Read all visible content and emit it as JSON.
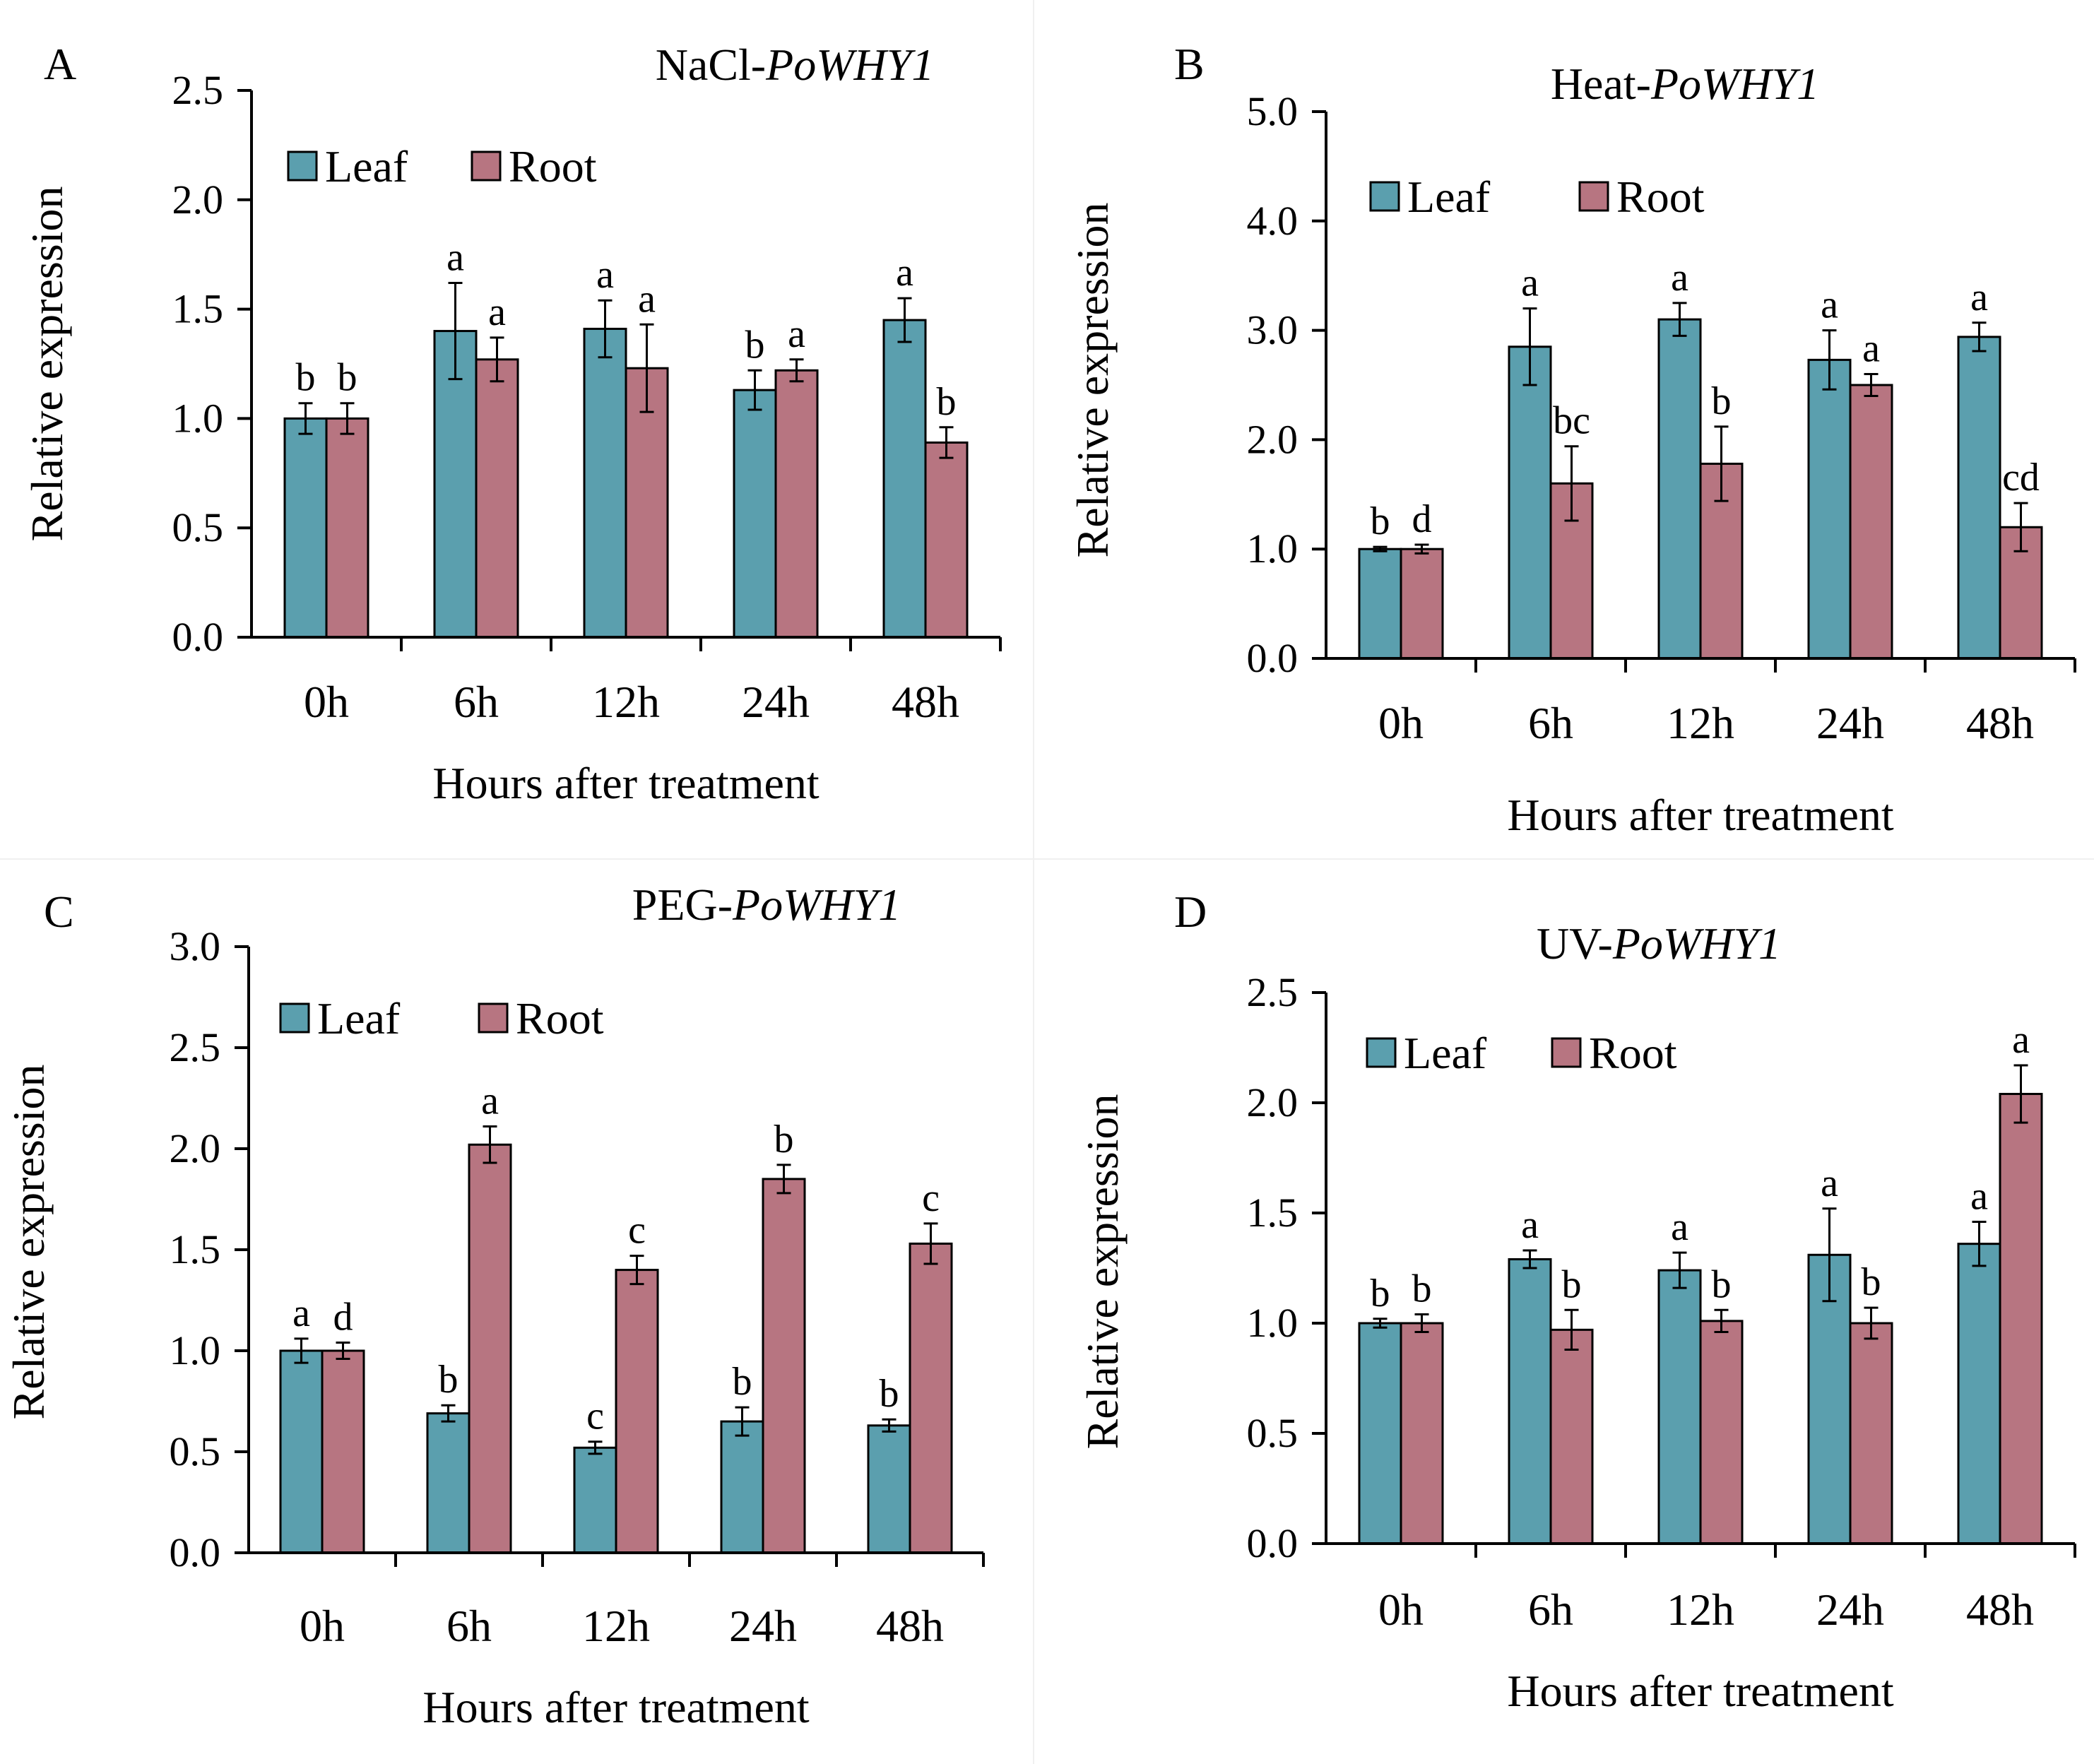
{
  "chart_data": [
    {
      "type": "bar",
      "panel_letter": "A",
      "title_prefix": "NaCl-",
      "title_gene": "PoWHY1",
      "categories": [
        "0h",
        "6h",
        "12h",
        "24h",
        "48h"
      ],
      "xlabel": "Hours after treatment",
      "ylabel": "Relative expression",
      "ylim": [
        0,
        2.5
      ],
      "yticks": [
        "0.0",
        "0.5",
        "1.0",
        "1.5",
        "2.0",
        "2.5"
      ],
      "series": [
        {
          "name": "Leaf",
          "color": "#5B9FAE",
          "values": [
            1.0,
            1.4,
            1.41,
            1.13,
            1.45
          ],
          "errors": [
            0.07,
            0.22,
            0.13,
            0.09,
            0.1
          ],
          "labels": [
            "b",
            "a",
            "a",
            "b",
            "a"
          ]
        },
        {
          "name": "Root",
          "color": "#B77581",
          "values": [
            1.0,
            1.27,
            1.23,
            1.22,
            0.89
          ],
          "errors": [
            0.07,
            0.1,
            0.2,
            0.05,
            0.07
          ],
          "labels": [
            "b",
            "a",
            "a",
            "a",
            "b"
          ]
        }
      ]
    },
    {
      "type": "bar",
      "panel_letter": "B",
      "title_prefix": "Heat-",
      "title_gene": "PoWHY1",
      "categories": [
        "0h",
        "6h",
        "12h",
        "24h",
        "48h"
      ],
      "xlabel": "Hours after treatment",
      "ylabel": "Relative expression",
      "ylim": [
        0,
        5.0
      ],
      "yticks": [
        "0.0",
        "1.0",
        "2.0",
        "3.0",
        "4.0",
        "5.0"
      ],
      "series": [
        {
          "name": "Leaf",
          "color": "#5B9FAE",
          "values": [
            1.0,
            2.85,
            3.1,
            2.73,
            2.94
          ],
          "errors": [
            0.02,
            0.35,
            0.15,
            0.27,
            0.13
          ],
          "labels": [
            "b",
            "a",
            "a",
            "a",
            "a"
          ]
        },
        {
          "name": "Root",
          "color": "#B77581",
          "values": [
            1.0,
            1.6,
            1.78,
            2.5,
            1.2
          ],
          "errors": [
            0.04,
            0.34,
            0.34,
            0.1,
            0.22
          ],
          "labels": [
            "d",
            "bc",
            "b",
            "a",
            "cd"
          ]
        }
      ]
    },
    {
      "type": "bar",
      "panel_letter": "C",
      "title_prefix": "PEG-",
      "title_gene": "PoWHY1",
      "categories": [
        "0h",
        "6h",
        "12h",
        "24h",
        "48h"
      ],
      "xlabel": "Hours after treatment",
      "ylabel": "Relative expression",
      "ylim": [
        0,
        3.0
      ],
      "yticks": [
        "0.0",
        "0.5",
        "1.0",
        "1.5",
        "2.0",
        "2.5",
        "3.0"
      ],
      "series": [
        {
          "name": "Leaf",
          "color": "#5B9FAE",
          "values": [
            1.0,
            0.69,
            0.52,
            0.65,
            0.63
          ],
          "errors": [
            0.06,
            0.04,
            0.03,
            0.07,
            0.03
          ],
          "labels": [
            "a",
            "b",
            "c",
            "b",
            "b"
          ]
        },
        {
          "name": "Root",
          "color": "#B77581",
          "values": [
            1.0,
            2.02,
            1.4,
            1.85,
            1.53
          ],
          "errors": [
            0.04,
            0.09,
            0.07,
            0.07,
            0.1
          ],
          "labels": [
            "d",
            "a",
            "c",
            "b",
            "c"
          ]
        }
      ]
    },
    {
      "type": "bar",
      "panel_letter": "D",
      "title_prefix": "UV-",
      "title_gene": "PoWHY1",
      "categories": [
        "0h",
        "6h",
        "12h",
        "24h",
        "48h"
      ],
      "xlabel": "Hours after treatment",
      "ylabel": "Relative expression",
      "ylim": [
        0,
        2.5
      ],
      "yticks": [
        "0.0",
        "0.5",
        "1.0",
        "1.5",
        "2.0",
        "2.5"
      ],
      "series": [
        {
          "name": "Leaf",
          "color": "#5B9FAE",
          "values": [
            1.0,
            1.29,
            1.24,
            1.31,
            1.36
          ],
          "errors": [
            0.02,
            0.04,
            0.08,
            0.21,
            0.1
          ],
          "labels": [
            "b",
            "a",
            "a",
            "a",
            "a"
          ]
        },
        {
          "name": "Root",
          "color": "#B77581",
          "values": [
            1.0,
            0.97,
            1.01,
            1.0,
            2.04
          ],
          "errors": [
            0.04,
            0.09,
            0.05,
            0.07,
            0.13
          ],
          "labels": [
            "b",
            "b",
            "b",
            "b",
            "a"
          ]
        }
      ]
    }
  ]
}
